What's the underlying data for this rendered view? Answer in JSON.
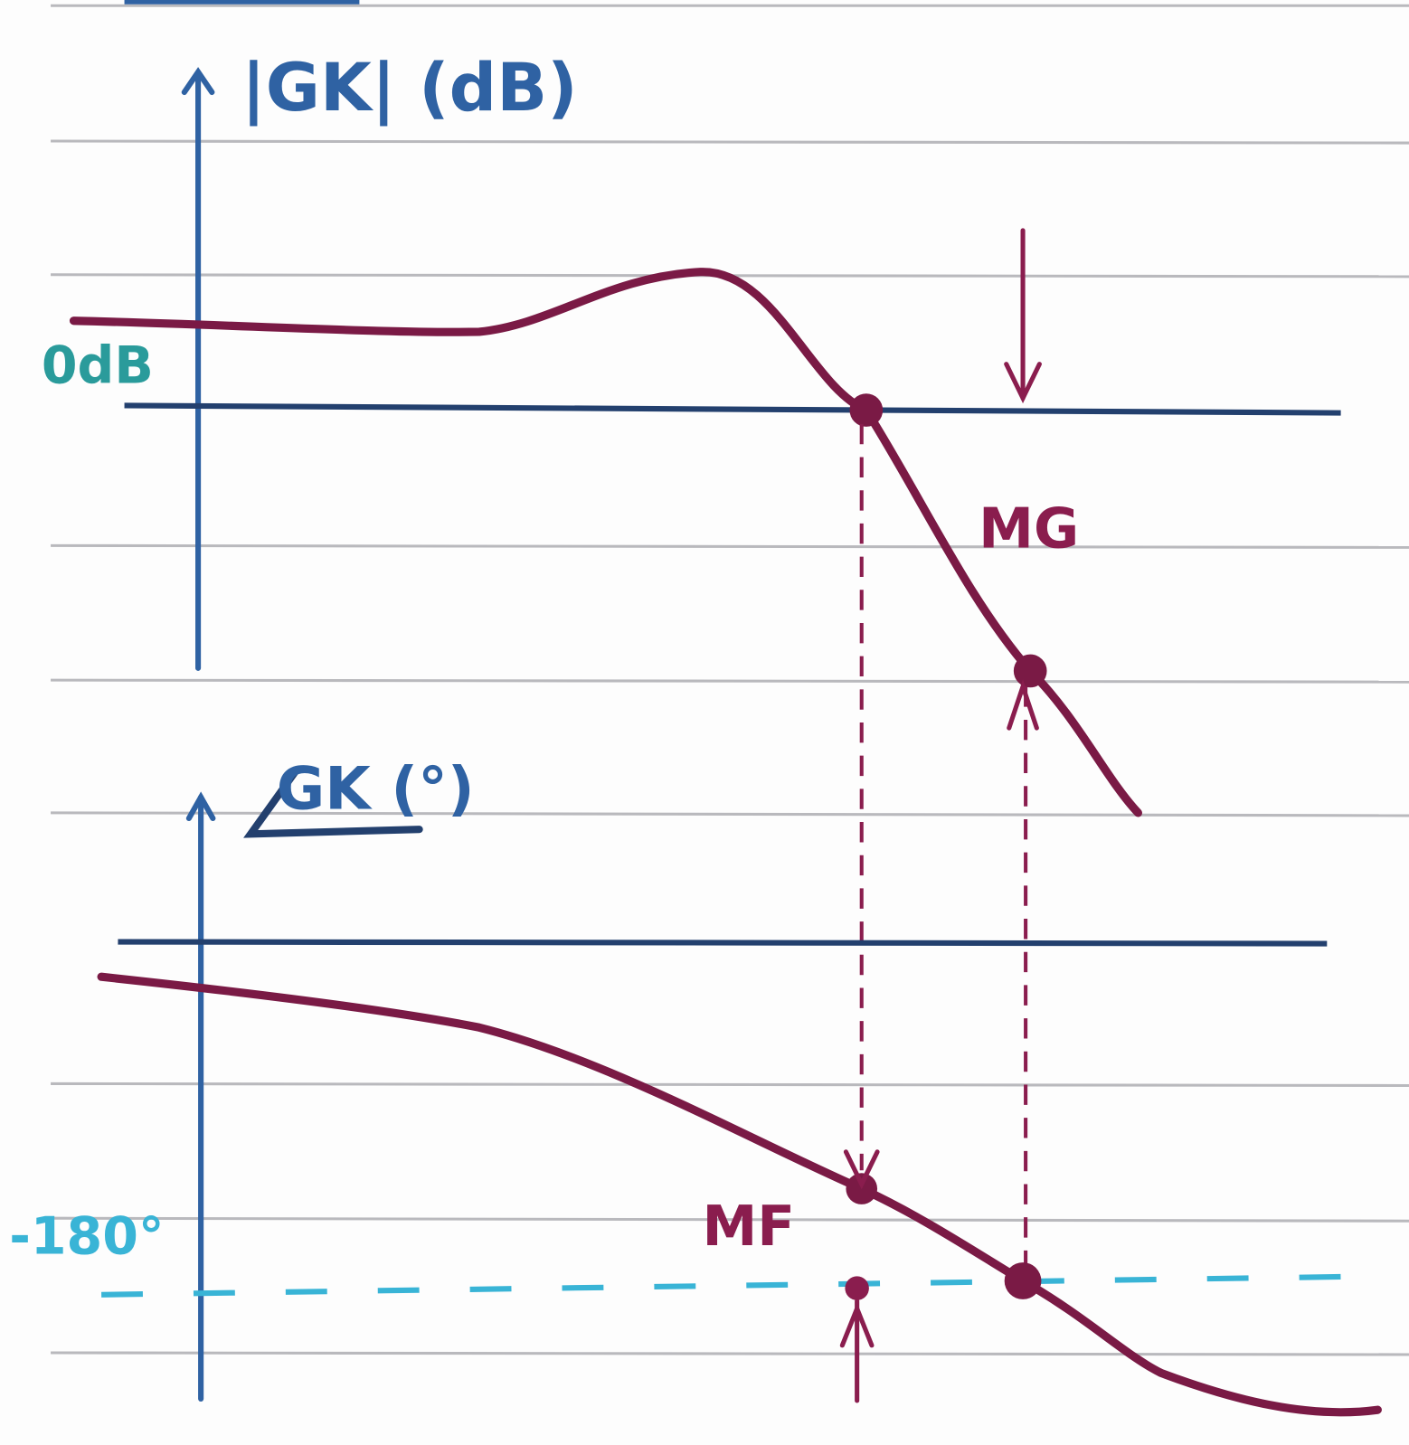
{
  "magnitude": {
    "axis_label": "|GK| (dB)",
    "zero_label": "0dB",
    "margin_label": "MG"
  },
  "phase": {
    "axis_label": "GK (°)",
    "reference_label": "-180°",
    "margin_label": "MF"
  }
}
